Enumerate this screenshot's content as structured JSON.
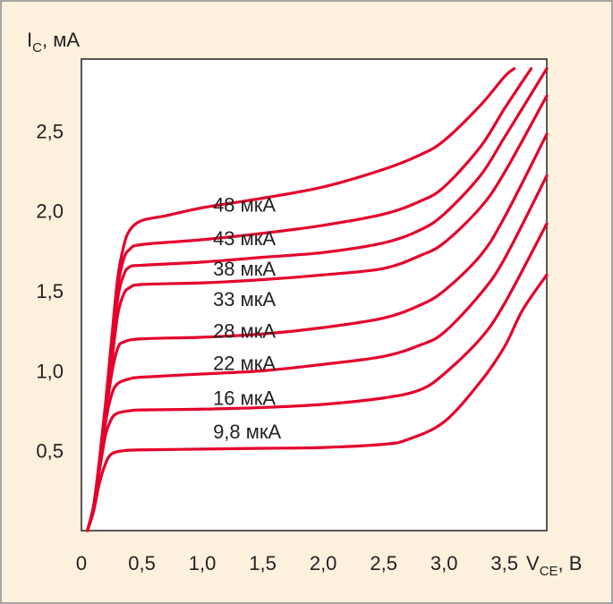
{
  "colors": {
    "background": "#fdf1dd",
    "frame": "#8a8a8a",
    "plot_bg": "#ffffff",
    "curve": "#e4002b",
    "text": "#231f20"
  },
  "chart_data": {
    "type": "line",
    "x_axis": {
      "label_main": "V",
      "label_sub": "CE",
      "label_unit": ", В",
      "range": [
        0,
        3.85
      ],
      "ticks": [
        0,
        0.5,
        1.0,
        1.5,
        2.0,
        2.5,
        3.0,
        3.5
      ],
      "tick_labels": [
        "0",
        "0,5",
        "1,0",
        "1,5",
        "2,0",
        "2,5",
        "3,0",
        "3,5"
      ]
    },
    "y_axis": {
      "label_main": "I",
      "label_sub": "C",
      "label_unit": ", мА",
      "range": [
        0,
        2.95
      ],
      "ticks": [
        0.5,
        1.0,
        1.5,
        2.0,
        2.5
      ],
      "tick_labels": [
        "0,5",
        "1,0",
        "1,5",
        "2,0",
        "2,5"
      ]
    },
    "grid": false,
    "legend": "none",
    "series": [
      {
        "name": "9,8 мкА",
        "label_at": [
          1.0,
          0.62
        ],
        "points": [
          [
            0.05,
            0
          ],
          [
            0.1,
            0.12
          ],
          [
            0.15,
            0.3
          ],
          [
            0.2,
            0.42
          ],
          [
            0.25,
            0.48
          ],
          [
            0.35,
            0.5
          ],
          [
            0.5,
            0.505
          ],
          [
            1.0,
            0.51
          ],
          [
            1.5,
            0.515
          ],
          [
            2.0,
            0.52
          ],
          [
            2.5,
            0.54
          ],
          [
            2.7,
            0.57
          ],
          [
            3.0,
            0.68
          ],
          [
            3.3,
            0.93
          ],
          [
            3.5,
            1.15
          ],
          [
            3.65,
            1.38
          ],
          [
            3.85,
            1.6
          ]
        ]
      },
      {
        "name": "16 мкА",
        "label_at": [
          1.0,
          0.83
        ],
        "points": [
          [
            0.05,
            0
          ],
          [
            0.1,
            0.15
          ],
          [
            0.15,
            0.38
          ],
          [
            0.2,
            0.6
          ],
          [
            0.25,
            0.7
          ],
          [
            0.3,
            0.735
          ],
          [
            0.4,
            0.75
          ],
          [
            0.5,
            0.755
          ],
          [
            1.0,
            0.76
          ],
          [
            1.5,
            0.77
          ],
          [
            2.0,
            0.79
          ],
          [
            2.5,
            0.83
          ],
          [
            2.8,
            0.88
          ],
          [
            3.0,
            0.98
          ],
          [
            3.3,
            1.2
          ],
          [
            3.5,
            1.42
          ],
          [
            3.85,
            1.92
          ]
        ]
      },
      {
        "name": "22 мкА",
        "label_at": [
          1.0,
          1.05
        ],
        "points": [
          [
            0.05,
            0
          ],
          [
            0.1,
            0.15
          ],
          [
            0.15,
            0.4
          ],
          [
            0.2,
            0.68
          ],
          [
            0.25,
            0.85
          ],
          [
            0.3,
            0.92
          ],
          [
            0.4,
            0.95
          ],
          [
            0.5,
            0.96
          ],
          [
            1.0,
            0.98
          ],
          [
            1.5,
            1.0
          ],
          [
            2.0,
            1.04
          ],
          [
            2.5,
            1.09
          ],
          [
            2.8,
            1.16
          ],
          [
            3.0,
            1.24
          ],
          [
            3.3,
            1.48
          ],
          [
            3.5,
            1.7
          ],
          [
            3.85,
            2.22
          ]
        ]
      },
      {
        "name": "28 мкА",
        "label_at": [
          1.0,
          1.25
        ],
        "points": [
          [
            0.05,
            0
          ],
          [
            0.1,
            0.15
          ],
          [
            0.15,
            0.42
          ],
          [
            0.2,
            0.72
          ],
          [
            0.25,
            0.98
          ],
          [
            0.3,
            1.14
          ],
          [
            0.35,
            1.18
          ],
          [
            0.5,
            1.2
          ],
          [
            1.0,
            1.21
          ],
          [
            1.5,
            1.23
          ],
          [
            2.0,
            1.27
          ],
          [
            2.5,
            1.33
          ],
          [
            2.8,
            1.41
          ],
          [
            3.0,
            1.5
          ],
          [
            3.3,
            1.72
          ],
          [
            3.5,
            1.96
          ],
          [
            3.85,
            2.48
          ]
        ]
      },
      {
        "name": "33 мкА",
        "label_at": [
          1.0,
          1.45
        ],
        "points": [
          [
            0.05,
            0
          ],
          [
            0.1,
            0.15
          ],
          [
            0.15,
            0.43
          ],
          [
            0.2,
            0.75
          ],
          [
            0.25,
            1.05
          ],
          [
            0.3,
            1.35
          ],
          [
            0.35,
            1.48
          ],
          [
            0.4,
            1.52
          ],
          [
            0.5,
            1.54
          ],
          [
            1.0,
            1.55
          ],
          [
            1.5,
            1.57
          ],
          [
            2.0,
            1.6
          ],
          [
            2.5,
            1.64
          ],
          [
            2.8,
            1.72
          ],
          [
            3.0,
            1.8
          ],
          [
            3.3,
            2.02
          ],
          [
            3.5,
            2.24
          ],
          [
            3.85,
            2.72
          ]
        ]
      },
      {
        "name": "38 мкА",
        "label_at": [
          1.0,
          1.64
        ],
        "points": [
          [
            0.05,
            0
          ],
          [
            0.1,
            0.15
          ],
          [
            0.15,
            0.43
          ],
          [
            0.2,
            0.76
          ],
          [
            0.25,
            1.1
          ],
          [
            0.3,
            1.45
          ],
          [
            0.35,
            1.6
          ],
          [
            0.4,
            1.65
          ],
          [
            0.5,
            1.66
          ],
          [
            1.0,
            1.68
          ],
          [
            1.5,
            1.71
          ],
          [
            2.0,
            1.74
          ],
          [
            2.5,
            1.8
          ],
          [
            2.8,
            1.88
          ],
          [
            3.0,
            1.98
          ],
          [
            3.3,
            2.22
          ],
          [
            3.5,
            2.46
          ],
          [
            3.85,
            2.89
          ]
        ]
      },
      {
        "name": "43 мкА",
        "label_at": [
          1.0,
          1.83
        ],
        "points": [
          [
            0.05,
            0
          ],
          [
            0.1,
            0.15
          ],
          [
            0.15,
            0.44
          ],
          [
            0.2,
            0.78
          ],
          [
            0.25,
            1.15
          ],
          [
            0.3,
            1.52
          ],
          [
            0.35,
            1.7
          ],
          [
            0.4,
            1.76
          ],
          [
            0.5,
            1.79
          ],
          [
            1.0,
            1.82
          ],
          [
            1.5,
            1.86
          ],
          [
            2.0,
            1.91
          ],
          [
            2.5,
            1.98
          ],
          [
            2.8,
            2.06
          ],
          [
            3.0,
            2.15
          ],
          [
            3.3,
            2.4
          ],
          [
            3.5,
            2.64
          ],
          [
            3.72,
            2.89
          ]
        ]
      },
      {
        "name": "48 мкА",
        "label_at": [
          1.0,
          2.04
        ],
        "points": [
          [
            0.05,
            0
          ],
          [
            0.1,
            0.15
          ],
          [
            0.15,
            0.45
          ],
          [
            0.2,
            0.8
          ],
          [
            0.25,
            1.2
          ],
          [
            0.3,
            1.58
          ],
          [
            0.35,
            1.78
          ],
          [
            0.4,
            1.88
          ],
          [
            0.5,
            1.94
          ],
          [
            0.7,
            1.97
          ],
          [
            1.0,
            2.02
          ],
          [
            1.5,
            2.08
          ],
          [
            2.0,
            2.15
          ],
          [
            2.5,
            2.26
          ],
          [
            2.8,
            2.35
          ],
          [
            3.0,
            2.44
          ],
          [
            3.3,
            2.66
          ],
          [
            3.5,
            2.84
          ],
          [
            3.58,
            2.89
          ]
        ]
      }
    ]
  }
}
